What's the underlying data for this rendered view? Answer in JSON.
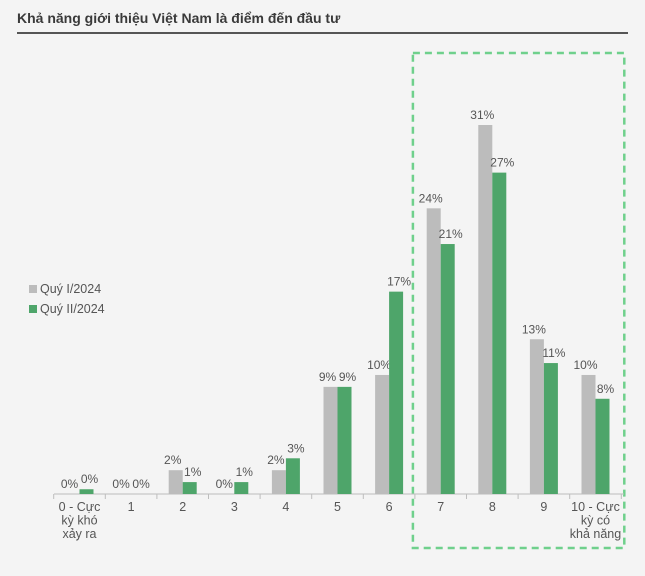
{
  "chart_data": {
    "type": "bar",
    "title": "Khả năng giới thiệu Việt Nam là điểm đến đầu tư",
    "categories": [
      "0 - Cực kỳ khó xảy ra",
      "1",
      "2",
      "3",
      "4",
      "5",
      "6",
      "7",
      "8",
      "9",
      "10 - Cực kỳ có khả năng"
    ],
    "category_lines": [
      [
        "0 - Cực",
        "kỳ khó",
        "xảy ra"
      ],
      [
        "1"
      ],
      [
        "2"
      ],
      [
        "3"
      ],
      [
        "4"
      ],
      [
        "5"
      ],
      [
        "6"
      ],
      [
        "7"
      ],
      [
        "8"
      ],
      [
        "9"
      ],
      [
        "10 - Cực",
        "kỳ có",
        "khả năng"
      ]
    ],
    "series": [
      {
        "name": "Quý I/2024",
        "color": "#bcbcbc",
        "values": [
          0,
          0,
          2,
          0,
          2,
          9,
          10,
          24,
          31,
          13,
          10
        ],
        "labels": [
          "0%",
          "0%",
          "2%",
          "0%",
          "2%",
          "9%",
          "10%",
          "24%",
          "31%",
          "13%",
          "10%"
        ]
      },
      {
        "name": "Quý II/2024",
        "color": "#4ea56a",
        "values": [
          0.4,
          0,
          1,
          1,
          3,
          9,
          17,
          21,
          27,
          11,
          8
        ],
        "labels": [
          "0%",
          "0%",
          "1%",
          "1%",
          "3%",
          "9%",
          "17%",
          "21%",
          "27%",
          "11%",
          "8%"
        ]
      }
    ],
    "ylim": [
      0,
      31
    ],
    "grid": false,
    "legend_position": "left",
    "highlight_categories": [
      "7",
      "8",
      "9",
      "10 - Cực kỳ có khả năng"
    ],
    "highlight_color": "#6fd08c"
  }
}
